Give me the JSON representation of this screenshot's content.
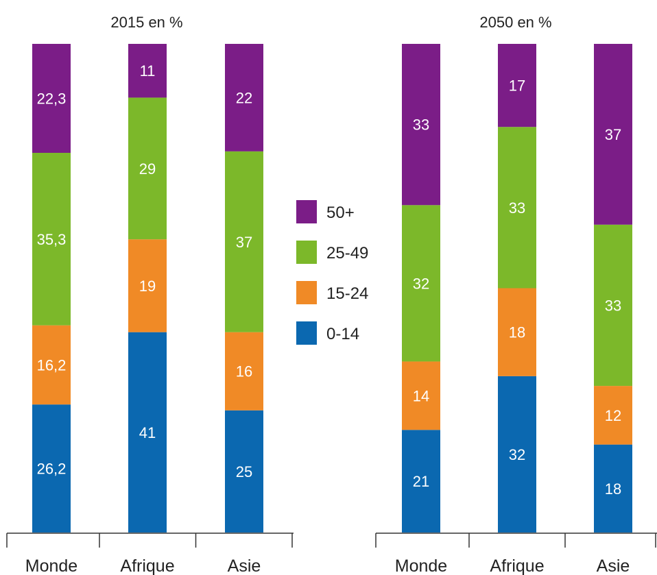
{
  "chart_data": [
    {
      "type": "bar",
      "stacked": true,
      "title": "2015 en %",
      "categories": [
        "Monde",
        "Afrique",
        "Asie"
      ],
      "series": [
        {
          "name": "0-14",
          "values": [
            26.2,
            41,
            25
          ],
          "labels": [
            "26,2",
            "41",
            "25"
          ]
        },
        {
          "name": "15-24",
          "values": [
            16.2,
            19,
            16
          ],
          "labels": [
            "16,2",
            "19",
            "16"
          ]
        },
        {
          "name": "25-49",
          "values": [
            35.3,
            29,
            37
          ],
          "labels": [
            "35,3",
            "29",
            "37"
          ]
        },
        {
          "name": "50+",
          "values": [
            22.3,
            11,
            22
          ],
          "labels": [
            "22,3",
            "11",
            "22"
          ]
        }
      ],
      "ylim": [
        0,
        100
      ]
    },
    {
      "type": "bar",
      "stacked": true,
      "title": "2050 en %",
      "categories": [
        "Monde",
        "Afrique",
        "Asie"
      ],
      "series": [
        {
          "name": "0-14",
          "values": [
            21,
            32,
            18
          ],
          "labels": [
            "21",
            "32",
            "18"
          ]
        },
        {
          "name": "15-24",
          "values": [
            14,
            18,
            12
          ],
          "labels": [
            "14",
            "18",
            "12"
          ]
        },
        {
          "name": "25-49",
          "values": [
            32,
            33,
            33
          ],
          "labels": [
            "32",
            "33",
            "33"
          ]
        },
        {
          "name": "50+",
          "values": [
            33,
            17,
            37
          ],
          "labels": [
            "33",
            "17",
            "37"
          ]
        }
      ],
      "ylim": [
        0,
        100
      ]
    }
  ],
  "legend": {
    "placement": "center",
    "items": [
      {
        "label": "50+",
        "color": "#7b1d87"
      },
      {
        "label": "25-49",
        "color": "#7cb82a"
      },
      {
        "label": "15-24",
        "color": "#f08a26"
      },
      {
        "label": "0-14",
        "color": "#0b68b0"
      }
    ]
  },
  "colors": {
    "0-14": "#0b68b0",
    "15-24": "#f08a26",
    "25-49": "#7cb82a",
    "50+": "#7b1d87",
    "axis": "#333333"
  }
}
